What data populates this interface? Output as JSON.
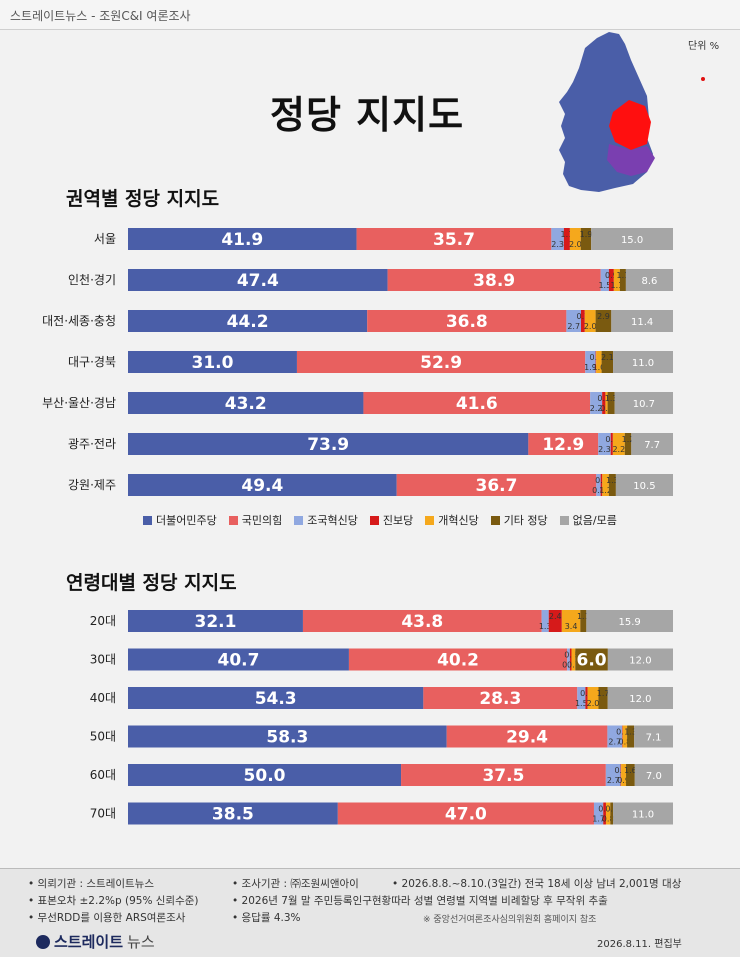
{
  "header": {
    "source_line": "스트레이트뉴스 - 조원C&I 여론조사"
  },
  "title": "정당 지지도",
  "unit_label": "단위 %",
  "legend": [
    {
      "label": "더불어민주당",
      "color": "#4a5ea8"
    },
    {
      "label": "국민의힘",
      "color": "#e8605f"
    },
    {
      "label": "조국혁신당",
      "color": "#90a8e0"
    },
    {
      "label": "진보당",
      "color": "#d61a1a"
    },
    {
      "label": "개혁신당",
      "color": "#f5a81c"
    },
    {
      "label": "기타 정당",
      "color": "#7a5a10"
    },
    {
      "label": "없음/모름",
      "color": "#a6a6a6"
    }
  ],
  "chart_data": [
    {
      "type": "bar",
      "stacked": "horizontal-100",
      "title": "권역별 정당 지지도",
      "categories": [
        "서울",
        "인천·경기",
        "대전·세종·충청",
        "대구·경북",
        "부산·울산·경남",
        "광주·전라",
        "강원·제주"
      ],
      "series": [
        {
          "name": "더불어민주당",
          "values": [
            41.9,
            47.4,
            44.2,
            31.0,
            43.2,
            73.9,
            49.4
          ]
        },
        {
          "name": "국민의힘",
          "values": [
            35.7,
            38.9,
            36.8,
            52.9,
            41.6,
            12.9,
            36.7
          ]
        },
        {
          "name": "조국혁신당",
          "values": [
            2.3,
            1.5,
            2.7,
            1.9,
            2.2,
            2.3,
            0.8
          ]
        },
        {
          "name": "진보당",
          "values": [
            1.1,
            0.9,
            0.7,
            0.1,
            0.6,
            0.4,
            0.3
          ]
        },
        {
          "name": "개혁신당",
          "values": [
            2.0,
            1.1,
            2.0,
            1.0,
            0.4,
            2.2,
            1.2
          ]
        },
        {
          "name": "기타 정당",
          "values": [
            1.9,
            1.1,
            2.9,
            2.1,
            1.3,
            1.2,
            1.3
          ]
        },
        {
          "name": "없음/모름",
          "values": [
            15.0,
            8.6,
            11.4,
            11.0,
            10.7,
            7.7,
            10.5
          ]
        }
      ],
      "label_min": 5
    },
    {
      "type": "bar",
      "stacked": "horizontal-100",
      "title": "연령대별 정당 지지도",
      "categories": [
        "20대",
        "30대",
        "40대",
        "50대",
        "60대",
        "70대"
      ],
      "series": [
        {
          "name": "더불어민주당",
          "values": [
            32.1,
            40.7,
            54.3,
            58.3,
            50.0,
            38.5
          ]
        },
        {
          "name": "국민의힘",
          "values": [
            43.8,
            40.2,
            28.3,
            29.4,
            37.5,
            47.0
          ]
        },
        {
          "name": "조국혁신당",
          "values": [
            1.3,
            0.5,
            1.5,
            2.7,
            2.7,
            1.7
          ]
        },
        {
          "name": "진보당",
          "values": [
            2.4,
            0.3,
            0.4,
            0.1,
            0.1,
            0.5
          ]
        },
        {
          "name": "개혁신당",
          "values": [
            3.4,
            0.7,
            2.0,
            0.8,
            0.9,
            0.8
          ]
        },
        {
          "name": "기타 정당",
          "values": [
            1.1,
            6.0,
            1.7,
            1.3,
            1.6,
            0.5
          ]
        },
        {
          "name": "없음/모름",
          "values": [
            15.9,
            12.0,
            12.0,
            7.1,
            7.0,
            11.0
          ]
        }
      ],
      "label_min": 5
    }
  ],
  "footer": {
    "notes": [
      "• 의뢰기관 : 스트레이트뉴스",
      "• 조사기관 : ㈜조원씨앤아이",
      "• 2026.8.8.~8.10.(3일간) 전국 18세 이상 남녀 2,001명 대상",
      "• 표본오차 ±2.2%p (95% 신뢰수준)",
      "• 2026년 7월 말 주민등록인구현황따라 성별 연령별 지역별 비례할당 후 무작위 추출",
      "• 무선RDD를 이용한 ARS여론조사",
      "• 응답률 4.3%",
      "※ 중앙선거여론조사심의위원회 홈페이지 참조"
    ],
    "logo_main": "스트레이트",
    "logo_sub": "뉴스",
    "date": "2026.8.11.  편집부"
  }
}
